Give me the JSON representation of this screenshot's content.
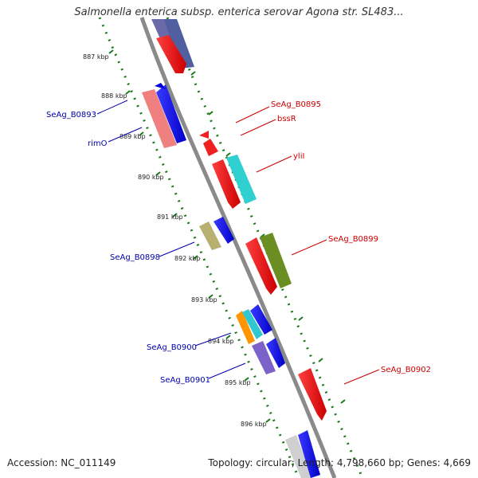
{
  "title": "Salmonella enterica subsp. enterica serovar Agona str. SL483...",
  "footer": {
    "accession": "Accession: NC_011149",
    "info": "Topology: circular; Length: 4,798,660 bp; Genes: 4,669"
  },
  "map": {
    "ticks": [
      "887 kbp",
      "888 kbp",
      "889 kbp",
      "890 kbp",
      "891 kbp",
      "892 kbp",
      "893 kbp",
      "894 kbp",
      "895 kbp",
      "896 kbp"
    ],
    "labels": {
      "left": [
        "SeAg_B0893",
        "rimO",
        "SeAg_B0898",
        "SeAg_B0900",
        "SeAg_B0901"
      ],
      "right": [
        "SeAg_B0895",
        "bssR",
        "yliI",
        "SeAg_B0899",
        "SeAg_B0902"
      ]
    },
    "colors": {
      "forward_label": "#0000aa",
      "reverse_label": "#cc0000",
      "backbone": "#808080",
      "dotted_ring": "#1a7a1a"
    }
  }
}
